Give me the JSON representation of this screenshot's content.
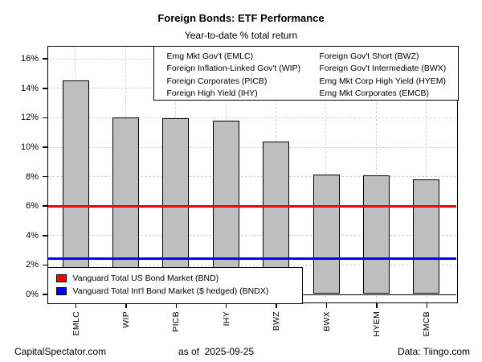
{
  "chart_data": {
    "type": "bar",
    "title": "Foreign Bonds: ETF Performance",
    "subtitle": "Year-to-date % total return",
    "categories": [
      "EMLC",
      "WIP",
      "PICB",
      "IHY",
      "BWZ",
      "BWX",
      "HYEM",
      "EMCB"
    ],
    "values": [
      14.5,
      12.0,
      11.95,
      11.75,
      10.35,
      8.1,
      8.05,
      7.8
    ],
    "xlabel": "",
    "ylabel": "",
    "yticks": [
      0,
      2,
      4,
      6,
      8,
      10,
      12,
      14,
      16
    ],
    "ytick_labels": [
      "0%",
      "2%",
      "4%",
      "6%",
      "8%",
      "10%",
      "12%",
      "14%",
      "16%"
    ],
    "ylim": [
      -0.7,
      17.2
    ],
    "grid": true,
    "bar_color": "#bebebe",
    "bar_border_color": "#000000",
    "reference_lines": [
      {
        "ticker": "BND",
        "label": "Vanguard Total US Bond Market (BND)",
        "value": 5.95,
        "color": "#ff0000"
      },
      {
        "ticker": "BNDX",
        "label": "Vanguard Total Int'l Bond Market ($ hedged) (BNDX)",
        "value": 2.4,
        "color": "#0000ff"
      }
    ]
  },
  "legend_top": {
    "col1": [
      "Emg Mkt Gov't (EMLC)",
      "Foreign Inflation-Linked Gov't (WIP)",
      "Foreign Corporates (PICB)",
      "Foreign High Yield (IHY)"
    ],
    "col2": [
      "Foreign Gov't Short (BWZ)",
      "Foreign Gov't Intermediate (BWX)",
      "Emg Mkt Corp High Yield (HYEM)",
      "Emg Mkt Corporates (EMCB)"
    ]
  },
  "footer": {
    "left": "CapitalSpectator.com",
    "center": "as of  2025-09-25",
    "right": "Data: Tiingo.com"
  }
}
